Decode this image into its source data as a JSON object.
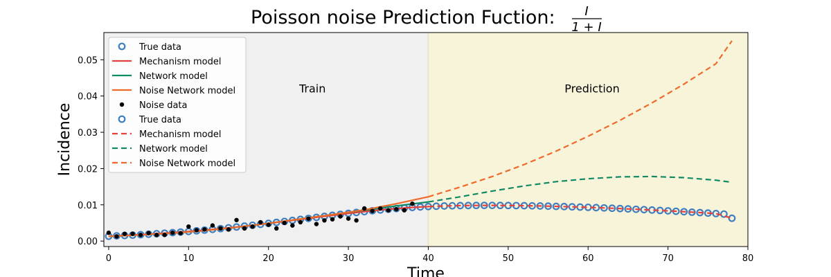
{
  "chart_data": {
    "type": "line",
    "title": "Poisson noise Prediction Fuction: ",
    "title_formula": {
      "numerator": "I",
      "denominator": "1 + I"
    },
    "xlabel": "Time",
    "ylabel": "Incidence",
    "xlim": [
      -0.6,
      80
    ],
    "ylim": [
      -0.0015,
      0.0575
    ],
    "xticks": [
      0,
      10,
      20,
      30,
      40,
      50,
      60,
      70,
      80
    ],
    "xtick_labels": [
      "0",
      "10",
      "20",
      "30",
      "40",
      "50",
      "60",
      "70",
      "80"
    ],
    "yticks": [
      0.0,
      0.01,
      0.02,
      0.03,
      0.04,
      0.05
    ],
    "ytick_labels": [
      "0.00",
      "0.01",
      "0.02",
      "0.03",
      "0.04",
      "0.05"
    ],
    "regions": [
      {
        "label": "Train",
        "x_range": [
          -0.6,
          40
        ],
        "color": "#f0f0f0",
        "label_x": 25.5,
        "label_y": 0.041
      },
      {
        "label": "Prediction",
        "x_range": [
          40,
          80
        ],
        "color": "#f8f4da",
        "label_x": 60.5,
        "label_y": 0.041
      }
    ],
    "legend": {
      "position": "upper-left",
      "entries": [
        {
          "label": "True data",
          "marker": "open-circle",
          "color": "#3f7fbf"
        },
        {
          "label": "Mechanism model",
          "line": "solid",
          "color": "#e8413c"
        },
        {
          "label": "Network model",
          "line": "solid",
          "color": "#0f8a64"
        },
        {
          "label": "Noise Network model",
          "line": "solid",
          "color": "#ef6a2a"
        },
        {
          "label": "Noise data",
          "marker": "dot",
          "color": "#000000"
        },
        {
          "label": "True data",
          "marker": "open-circle",
          "color": "#3f7fbf"
        },
        {
          "label": "Mechanism model",
          "line": "dashed",
          "color": "#e8413c"
        },
        {
          "label": "Network model",
          "line": "dashed",
          "color": "#0f8a64"
        },
        {
          "label": "Noise Network model",
          "line": "dashed",
          "color": "#ef6a2a"
        }
      ]
    },
    "series": [
      {
        "name": "True data",
        "kind": "open-circle",
        "color": "#3f7fbf",
        "x": [
          0,
          1,
          2,
          3,
          4,
          5,
          6,
          7,
          8,
          9,
          10,
          11,
          12,
          13,
          14,
          15,
          16,
          17,
          18,
          19,
          20,
          21,
          22,
          23,
          24,
          25,
          26,
          27,
          28,
          29,
          30,
          31,
          32,
          33,
          34,
          35,
          36,
          37,
          38,
          39,
          40,
          41,
          42,
          43,
          44,
          45,
          46,
          47,
          48,
          49,
          50,
          51,
          52,
          53,
          54,
          55,
          56,
          57,
          58,
          59,
          60,
          61,
          62,
          63,
          64,
          65,
          66,
          67,
          68,
          69,
          70,
          71,
          72,
          73,
          74,
          75,
          76,
          77,
          78
        ],
        "y": [
          0.00134,
          0.00144,
          0.00154,
          0.00165,
          0.00177,
          0.0019,
          0.00203,
          0.00218,
          0.00233,
          0.00249,
          0.00266,
          0.00284,
          0.00303,
          0.00323,
          0.00344,
          0.00366,
          0.00389,
          0.00413,
          0.00437,
          0.00462,
          0.00488,
          0.00515,
          0.00542,
          0.0057,
          0.00598,
          0.00626,
          0.00654,
          0.00682,
          0.0071,
          0.00737,
          0.00763,
          0.00789,
          0.00813,
          0.00836,
          0.00858,
          0.00878,
          0.00897,
          0.00913,
          0.00928,
          0.00941,
          0.00952,
          0.00961,
          0.00968,
          0.00974,
          0.00978,
          0.00981,
          0.00983,
          0.00984,
          0.00984,
          0.00983,
          0.00981,
          0.00979,
          0.00976,
          0.00972,
          0.00968,
          0.00963,
          0.00957,
          0.00951,
          0.00945,
          0.00938,
          0.00931,
          0.00923,
          0.00915,
          0.00906,
          0.00897,
          0.00887,
          0.00877,
          0.00867,
          0.00856,
          0.00845,
          0.00834,
          0.00822,
          0.0081,
          0.00797,
          0.00785,
          0.00772,
          0.00759,
          0.00745,
          0.0063
        ]
      },
      {
        "name": "Noise data",
        "kind": "dot",
        "color": "#000000",
        "x": [
          0,
          1,
          2,
          3,
          4,
          5,
          6,
          7,
          8,
          9,
          10,
          11,
          12,
          13,
          14,
          15,
          16,
          17,
          18,
          19,
          20,
          21,
          22,
          23,
          24,
          25,
          26,
          27,
          28,
          29,
          30,
          31,
          32,
          33,
          34,
          35,
          36,
          37,
          38
        ],
        "y": [
          0.0023,
          0.0013,
          0.002,
          0.002,
          0.0017,
          0.0022,
          0.0017,
          0.0017,
          0.0023,
          0.0022,
          0.004,
          0.003,
          0.0032,
          0.0043,
          0.0035,
          0.0032,
          0.0058,
          0.0035,
          0.004,
          0.0052,
          0.0045,
          0.0035,
          0.005,
          0.0043,
          0.0052,
          0.0062,
          0.0047,
          0.0057,
          0.006,
          0.0068,
          0.0062,
          0.0057,
          0.009,
          0.0083,
          0.009,
          0.0085,
          0.0088,
          0.0085,
          0.0103
        ]
      },
      {
        "name": "Mechanism model",
        "kind": "line",
        "color": "#e8413c",
        "x": [
          0,
          2,
          4,
          6,
          8,
          10,
          12,
          14,
          16,
          18,
          20,
          22,
          24,
          26,
          28,
          30,
          32,
          34,
          36,
          38,
          40,
          42,
          44,
          46,
          48,
          50,
          52,
          54,
          56,
          58,
          60,
          62,
          64,
          66,
          68,
          70,
          72,
          74,
          76,
          78
        ],
        "y": [
          0.00134,
          0.00154,
          0.00177,
          0.00203,
          0.00233,
          0.00266,
          0.00303,
          0.00344,
          0.00389,
          0.00437,
          0.00488,
          0.00542,
          0.00598,
          0.00654,
          0.0071,
          0.00763,
          0.00813,
          0.00858,
          0.00897,
          0.00928,
          0.00952,
          0.00968,
          0.00978,
          0.00983,
          0.00984,
          0.00981,
          0.00976,
          0.00968,
          0.00957,
          0.00945,
          0.00931,
          0.00915,
          0.00897,
          0.00877,
          0.00856,
          0.00834,
          0.0081,
          0.00785,
          0.00759,
          0.0063
        ],
        "split_x": 40
      },
      {
        "name": "Network model",
        "kind": "line",
        "color": "#0f8a64",
        "x": [
          0,
          4,
          8,
          12,
          16,
          20,
          24,
          28,
          32,
          36,
          40,
          44,
          48,
          52,
          56,
          60,
          64,
          68,
          72,
          76,
          78
        ],
        "y": [
          0.0013,
          0.0017,
          0.0022,
          0.0029,
          0.0038,
          0.0049,
          0.0061,
          0.0073,
          0.0085,
          0.0097,
          0.0108,
          0.0122,
          0.0138,
          0.0152,
          0.0164,
          0.0172,
          0.0177,
          0.0178,
          0.0175,
          0.0168,
          0.0162
        ],
        "split_x": 40
      },
      {
        "name": "Noise Network model",
        "kind": "line",
        "color": "#ef6a2a",
        "x": [
          0,
          4,
          8,
          12,
          16,
          20,
          24,
          28,
          32,
          36,
          40,
          44,
          48,
          52,
          56,
          60,
          64,
          68,
          72,
          76,
          78
        ],
        "y": [
          0.0013,
          0.0017,
          0.0022,
          0.0029,
          0.0038,
          0.0049,
          0.0061,
          0.0073,
          0.0086,
          0.0103,
          0.0122,
          0.0149,
          0.0178,
          0.0211,
          0.0248,
          0.0289,
          0.0333,
          0.0381,
          0.0433,
          0.0489,
          0.0552
        ],
        "split_x": 40
      }
    ]
  }
}
